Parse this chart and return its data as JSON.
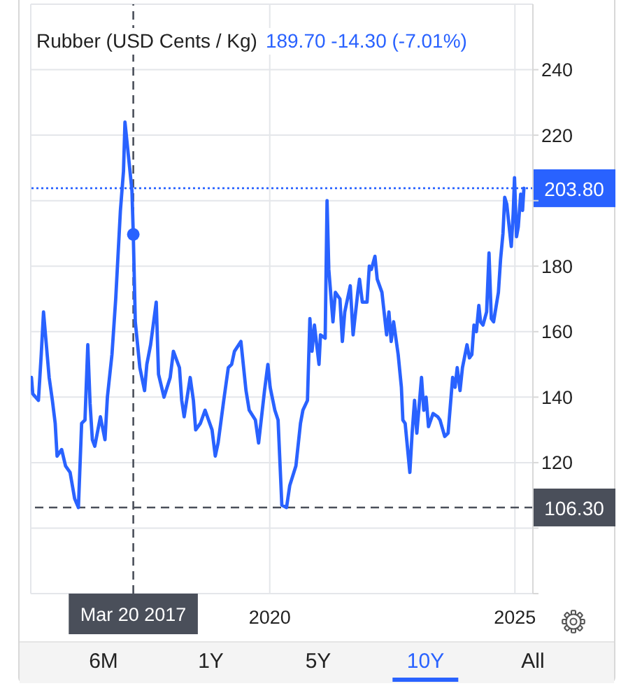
{
  "chart_data": {
    "type": "line",
    "title": "Rubber (USD Cents / Kg)",
    "subtitle": "189.70 -14.30 (-7.01%)",
    "xlim": [
      "2015-02-15",
      "2025-05-15"
    ],
    "xticks": [
      "2020",
      "2025"
    ],
    "ylim": [
      80,
      260
    ],
    "yticks": [
      {
        "value": 80,
        "label": null
      },
      {
        "value": 100,
        "label": null
      },
      120,
      140,
      160,
      180,
      {
        "value": 200,
        "label": null
      },
      220,
      240
    ],
    "grid": true,
    "ref_lines": [
      {
        "axis": "x",
        "value": "2017-03-20",
        "label": "Mar 20 2017",
        "color": "#4a4f5a",
        "line_style": "dashed"
      },
      {
        "axis": "y",
        "value": 106.3,
        "label": "106.30",
        "color": "#4a4f5a",
        "line_style": "dashed"
      },
      {
        "axis": "y",
        "value": 203.8,
        "label": "203.80",
        "color": "#2962ff",
        "line_style": "dotted"
      }
    ],
    "annotations": [
      "6M",
      "1Y",
      "5Y",
      "10Y",
      "All"
    ],
    "series": [
      {
        "color": "#2962ff",
        "x": [
          "2015-02-20",
          "2015-03-02",
          "2015-04-13",
          "2015-05-04",
          "2015-05-21",
          "2015-07-02",
          "2015-07-26",
          "2015-08-16",
          "2015-08-30",
          "2015-10-03",
          "2015-11-01",
          "2015-12-05",
          "2016-01-08",
          "2016-02-05",
          "2016-02-29",
          "2016-03-25",
          "2016-04-15",
          "2016-05-02",
          "2016-05-19",
          "2016-06-06",
          "2016-07-18",
          "2016-08-21",
          "2016-09-08",
          "2016-10-12",
          "2016-11-09",
          "2016-12-14",
          "2017-01-06",
          "2017-01-17",
          "2017-02-21",
          "2017-03-10",
          "2017-03-20",
          "2017-04-04",
          "2017-05-08",
          "2017-06-12",
          "2017-06-29",
          "2017-07-27",
          "2017-09-07",
          "2017-09-24",
          "2017-11-04",
          "2017-12-20",
          "2018-01-13",
          "2018-02-27",
          "2018-03-16",
          "2018-04-03",
          "2018-05-18",
          "2018-06-11",
          "2018-06-28",
          "2018-08-02",
          "2018-09-06",
          "2018-10-28",
          "2018-11-21",
          "2018-12-12",
          "2019-01-23",
          "2019-02-26",
          "2019-03-23",
          "2019-04-13",
          "2019-05-31",
          "2019-07-08",
          "2019-08-01",
          "2019-09-16",
          "2019-10-10",
          "2019-11-23",
          "2019-12-18",
          "2020-01-04",
          "2020-02-08",
          "2020-03-03",
          "2020-03-31",
          "2020-05-05",
          "2020-05-29",
          "2020-07-14",
          "2020-08-17",
          "2020-09-04",
          "2020-10-08",
          "2020-10-26",
          "2020-11-11",
          "2020-11-29",
          "2021-01-02",
          "2021-01-13",
          "2021-02-17",
          "2021-03-03",
          "2021-03-16",
          "2021-04-16",
          "2021-05-04",
          "2021-06-07",
          "2021-06-25",
          "2021-07-13",
          "2021-08-23",
          "2021-09-13",
          "2021-10-18",
          "2021-10-31",
          "2021-11-21",
          "2021-12-26",
          "2022-01-12",
          "2022-01-27",
          "2022-02-23",
          "2022-03-12",
          "2022-04-16",
          "2022-05-21",
          "2022-06-07",
          "2022-06-24",
          "2022-07-12",
          "2022-08-15",
          "2022-09-08",
          "2022-09-19",
          "2022-10-06",
          "2022-11-10",
          "2022-11-27",
          "2022-12-15",
          "2023-01-01",
          "2023-02-05",
          "2023-02-22",
          "2023-03-11",
          "2023-03-29",
          "2023-05-02",
          "2023-06-06",
          "2023-06-23",
          "2023-07-28",
          "2023-08-22",
          "2023-09-25",
          "2023-10-13",
          "2023-10-29",
          "2023-11-19",
          "2023-12-07",
          "2024-01-10",
          "2024-01-28",
          "2024-02-15",
          "2024-03-02",
          "2024-03-20",
          "2024-04-07",
          "2024-04-20",
          "2024-05-08",
          "2024-06-04",
          "2024-06-22",
          "2024-07-09",
          "2024-07-26",
          "2024-08-31",
          "2024-09-16",
          "2024-10-04",
          "2024-10-17",
          "2024-11-01",
          "2024-12-05",
          "2024-12-19",
          "2024-12-29",
          "2025-01-13",
          "2025-01-26",
          "2025-02-13",
          "2025-02-27",
          "2025-03-09"
        ],
        "values": [
          146,
          141,
          139,
          153,
          166,
          146,
          139,
          132,
          122,
          124,
          119,
          117,
          109,
          106.3,
          132,
          133,
          156,
          138,
          127,
          125,
          134,
          127,
          140,
          153,
          170,
          197,
          209,
          224,
          210,
          203,
          189.7,
          163,
          149,
          142,
          150,
          156,
          169,
          147,
          140,
          146,
          154,
          149,
          139,
          134,
          146,
          139,
          130,
          132,
          136,
          130,
          122,
          126,
          139,
          149,
          150,
          154,
          157,
          142,
          136,
          133,
          126,
          142,
          150,
          143,
          136,
          133,
          107,
          106.3,
          113,
          119,
          132,
          136,
          139,
          164,
          154,
          162,
          150,
          159,
          158,
          200,
          179,
          163,
          172,
          170,
          157,
          166,
          174,
          159,
          172,
          176,
          169,
          169,
          180,
          179,
          183,
          176,
          172,
          159,
          166,
          157,
          163,
          153,
          143,
          133,
          132,
          117,
          129,
          139,
          129,
          146,
          136,
          140,
          131,
          135,
          134,
          133,
          128,
          129,
          146,
          143,
          149,
          142,
          149,
          156,
          152,
          153,
          162,
          160,
          168,
          163,
          162,
          166,
          184,
          164,
          163,
          172,
          182,
          190,
          201,
          199,
          186,
          196,
          207,
          189,
          192,
          202,
          197,
          203.8
        ]
      },
      {
        "type": "scatter",
        "color": "#2962ff",
        "marker": "circle",
        "x": [
          "2017-03-20"
        ],
        "values": [
          189.7
        ]
      }
    ]
  }
}
